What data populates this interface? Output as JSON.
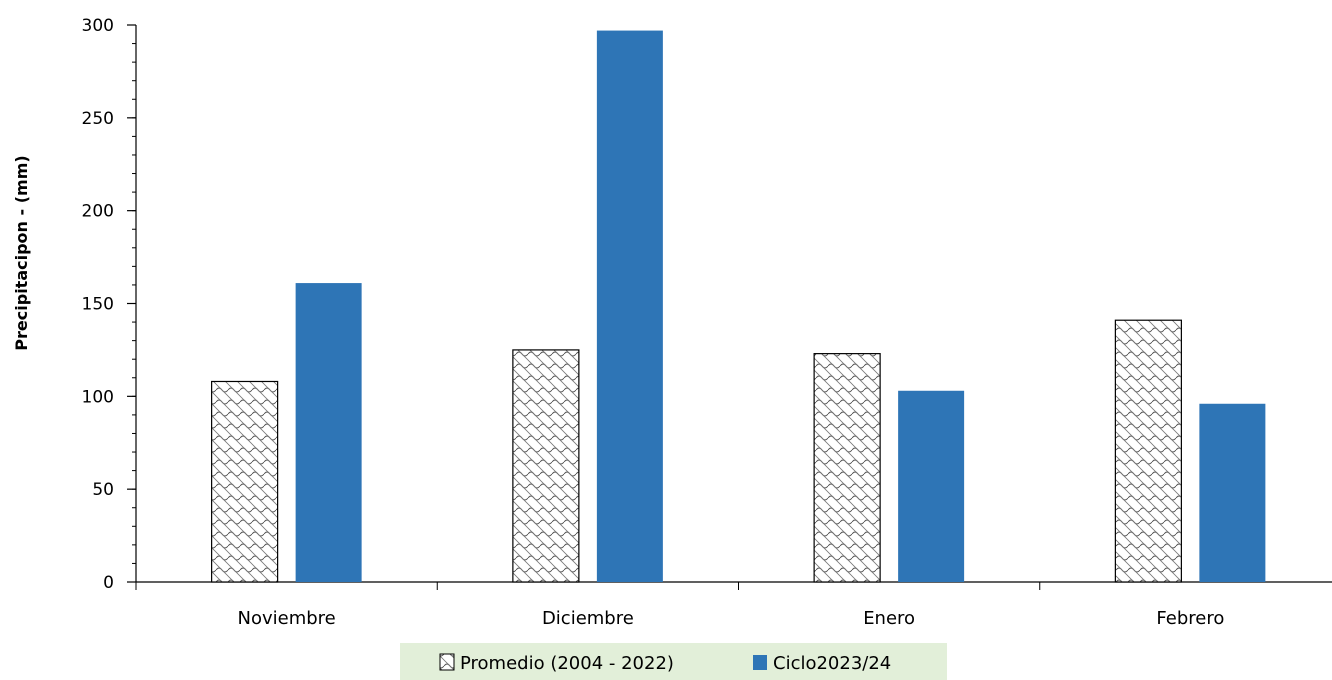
{
  "chart_data": {
    "type": "bar",
    "title": "",
    "xlabel": "",
    "ylabel": "Precipitacipon - (mm)",
    "ylim": [
      0,
      300
    ],
    "yticks": [
      0,
      50,
      100,
      150,
      200,
      250,
      300
    ],
    "grid": false,
    "legend_position": "bottom",
    "categories": [
      "Noviembre",
      "Diciembre",
      "Enero",
      "Febrero"
    ],
    "series": [
      {
        "name": "Promedio (2004 - 2022)",
        "values": [
          108,
          125,
          123,
          141
        ],
        "color": "#ffffff",
        "pattern": "crosshatch"
      },
      {
        "name": "Ciclo2023/24",
        "values": [
          161,
          297,
          103,
          96
        ],
        "color": "#2e75b6",
        "pattern": "solid"
      }
    ],
    "legend_background": "#e2efd9"
  }
}
